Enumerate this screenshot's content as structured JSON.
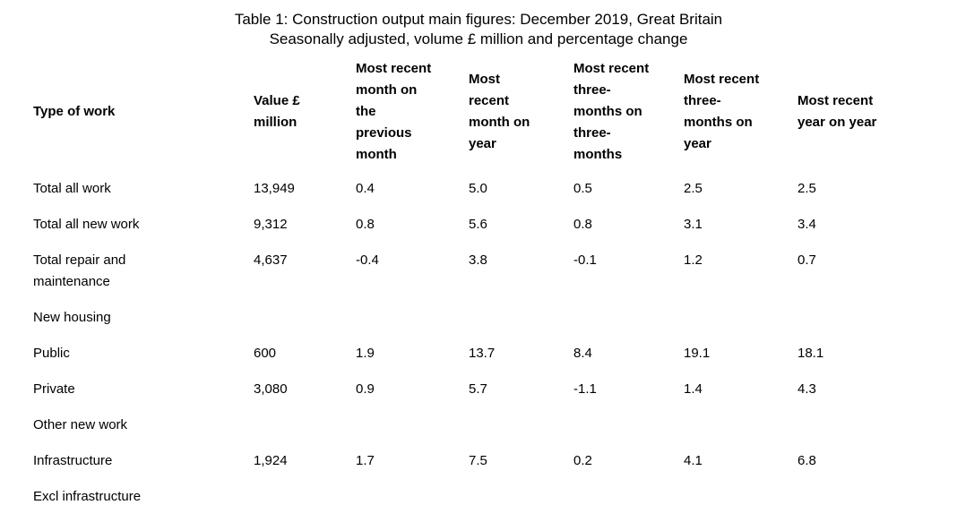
{
  "title": {
    "line1": "Table 1: Construction output main figures: December 2019, Great Britain",
    "line2": "Seasonally adjusted, volume £ million and percentage change"
  },
  "table": {
    "columns": [
      "Type of work",
      "Value £\nmillion",
      "Most recent\nmonth on\nthe\nprevious\nmonth",
      "Most\nrecent\nmonth on\nyear",
      "Most recent\nthree-\nmonths on\nthree-\nmonths",
      "Most recent\nthree-\nmonths on\nyear",
      "Most recent\nyear on year"
    ],
    "rows": [
      {
        "label": "Total all work",
        "values": [
          "13,949",
          "0.4",
          "5.0",
          "0.5",
          "2.5",
          "2.5"
        ]
      },
      {
        "label": "Total all new work",
        "values": [
          "9,312",
          "0.8",
          "5.6",
          "0.8",
          "3.1",
          "3.4"
        ]
      },
      {
        "label": "Total repair and\nmaintenance",
        "values": [
          "4,637",
          "-0.4",
          "3.8",
          "-0.1",
          "1.2",
          "0.7"
        ]
      },
      {
        "label": "New housing",
        "values": [
          "",
          "",
          "",
          "",
          "",
          ""
        ]
      },
      {
        "label": "Public",
        "values": [
          "600",
          "1.9",
          "13.7",
          "8.4",
          "19.1",
          "18.1"
        ]
      },
      {
        "label": "Private",
        "values": [
          "3,080",
          "0.9",
          "5.7",
          "-1.1",
          "1.4",
          "4.3"
        ]
      },
      {
        "label": "Other new work",
        "values": [
          "",
          "",
          "",
          "",
          "",
          ""
        ]
      },
      {
        "label": "Infrastructure",
        "values": [
          "1,924",
          "1.7",
          "7.5",
          "0.2",
          "4.1",
          "6.8"
        ]
      },
      {
        "label": "Excl infrastructure",
        "values": [
          "",
          "",
          "",
          "",
          "",
          ""
        ]
      }
    ]
  }
}
